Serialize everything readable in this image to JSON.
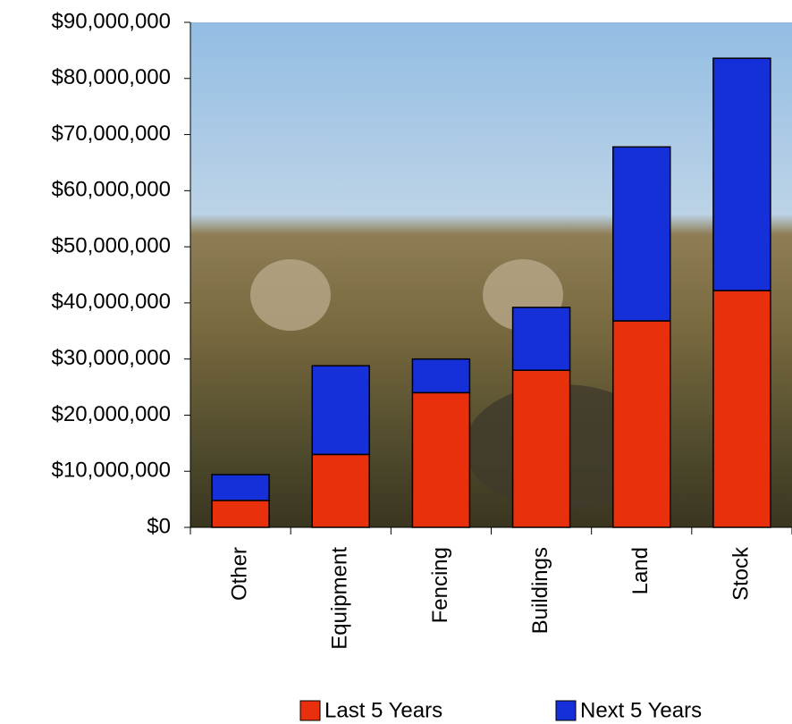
{
  "chart_data": {
    "type": "stacked_bar",
    "categories": [
      "Other",
      "Equipment",
      "Fencing",
      "Buildings",
      "Land",
      "Stock"
    ],
    "series": [
      {
        "name": "Last 5 Years",
        "color": "#e8300c",
        "values": [
          4800000,
          13000000,
          24000000,
          28000000,
          36800000,
          42200000
        ]
      },
      {
        "name": "Next 5 Years",
        "color": "#1530d8",
        "values": [
          4600000,
          15800000,
          6000000,
          11200000,
          31000000,
          41400000
        ]
      }
    ],
    "ylim": [
      0,
      90000000
    ],
    "yticks": [
      {
        "value": 0,
        "label": "$0"
      },
      {
        "value": 10000000,
        "label": "$10,000,000"
      },
      {
        "value": 20000000,
        "label": "$20,000,000"
      },
      {
        "value": 30000000,
        "label": "$30,000,000"
      },
      {
        "value": 40000000,
        "label": "$40,000,000"
      },
      {
        "value": 50000000,
        "label": "$50,000,000"
      },
      {
        "value": 60000000,
        "label": "$60,000,000"
      },
      {
        "value": 70000000,
        "label": "$70,000,000"
      },
      {
        "value": 80000000,
        "label": "$80,000,000"
      },
      {
        "value": 90000000,
        "label": "$90,000,000"
      }
    ],
    "legend": "bottom"
  }
}
